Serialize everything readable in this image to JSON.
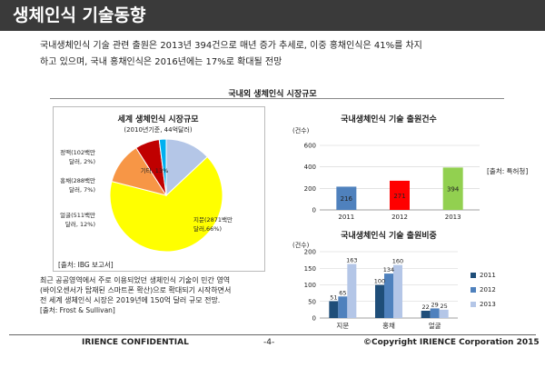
{
  "header": {
    "title": "생체인식 기술동향"
  },
  "intro": {
    "line1": "국내생체인식 기술 관련 출원은 2013년 394건으로 매년 증가 추세로, 이중 홍채인식은 41%를 차지",
    "line2": "하고 있으며, 국내 홍채인식은 2016년에는 17%로 확대될 전망"
  },
  "section": {
    "title": "국내외 생체인식 시장규모"
  },
  "pie": {
    "title": "세계 생체인식 시장규모",
    "subtitle": "(2010년기준, 44억달러)",
    "source": "[출처: IBG 보고서]"
  },
  "bar1": {
    "title": "국내생체인식 기술 출원건수",
    "unit": "(건수)",
    "source": "[출처: 특허청]"
  },
  "bar2": {
    "title": "국내생체인식 기술 출원비중",
    "unit": "(건수)"
  },
  "note": {
    "line1": "최근 공공영역에서 주로 이용되었던 생체인식 기술이 민간 영역",
    "line2": "(바이오센서가 탑재된 스마트폰 확산)으로 확대되기 시작하면서",
    "line3": "전 세계 생체인식 시장은 2019년에 150억 달러 규모 전망.",
    "line4": "[출처: Frost & Sullivan]"
  },
  "footer": {
    "left": "IRIENCE CONFIDENTIAL",
    "center": "-4-",
    "right": "©Copyright IRIENCE Corporation 2015"
  },
  "chart_data": [
    {
      "type": "pie",
      "title": "세계 생체인식 시장규모",
      "subtitle": "(2010년기준, 44억달러)",
      "slices": [
        {
          "label": "지문(2871백만달러,66%)",
          "value": 66,
          "color": "#ffff00"
        },
        {
          "label": "얼굴(511백만달러, 12%)",
          "value": 12,
          "color": "#f79646"
        },
        {
          "label": "홍채(288백만달러, 7%)",
          "value": 7,
          "color": "#c00000"
        },
        {
          "label": "정맥(102백만달러, 2%)",
          "value": 2,
          "color": "#00b0f0"
        },
        {
          "label": "기타, 13%",
          "value": 13,
          "color": "#b4c6e7"
        }
      ]
    },
    {
      "type": "bar",
      "title": "국내생체인식 기술 출원건수",
      "ylabel": "(건수)",
      "categories": [
        "2011",
        "2012",
        "2013"
      ],
      "values": [
        216,
        271,
        394
      ],
      "colors": [
        "#4f81bd",
        "#ff0000",
        "#92d050"
      ],
      "ylim": [
        0,
        600
      ],
      "yticks": [
        0,
        200,
        400,
        600
      ]
    },
    {
      "type": "bar",
      "title": "국내생체인식 기술 출원비중",
      "ylabel": "(건수)",
      "categories": [
        "지문",
        "홍채",
        "얼굴"
      ],
      "series": [
        {
          "name": "2011",
          "values": [
            51,
            100,
            22
          ],
          "color": "#1f4e79"
        },
        {
          "name": "2012",
          "values": [
            65,
            134,
            29
          ],
          "color": "#4f81bd"
        },
        {
          "name": "2013",
          "values": [
            163,
            160,
            25
          ],
          "color": "#b4c6e7"
        }
      ],
      "ylim": [
        0,
        200
      ],
      "yticks": [
        0,
        50,
        100,
        150,
        200
      ],
      "legend": "right"
    }
  ]
}
